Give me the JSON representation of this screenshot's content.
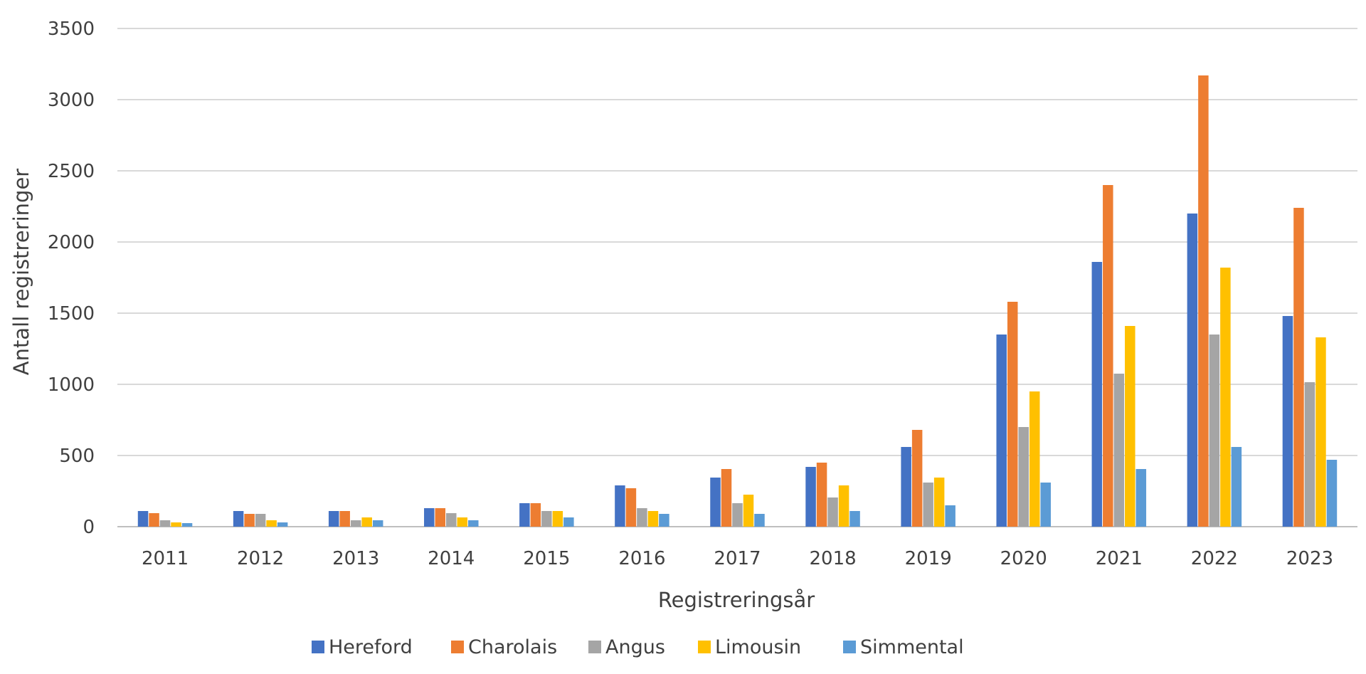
{
  "chart_data": {
    "type": "bar",
    "title": "",
    "xlabel": "Registreringsår",
    "ylabel": "Antall registreringer",
    "ylim": [
      0,
      3500
    ],
    "yticks": [
      "0",
      "500",
      "1000",
      "1500",
      "2000",
      "2500",
      "3000",
      "3500"
    ],
    "grid": true,
    "legend_position": "bottom",
    "categories": [
      "2011",
      "2012",
      "2013",
      "2014",
      "2015",
      "2016",
      "2017",
      "2018",
      "2019",
      "2020",
      "2021",
      "2022",
      "2023"
    ],
    "series": [
      {
        "name": "Hereford",
        "color": "#4472C4",
        "values": [
          110,
          110,
          110,
          130,
          165,
          290,
          345,
          420,
          560,
          1350,
          1860,
          2200,
          1480
        ]
      },
      {
        "name": "Charolais",
        "color": "#ED7D31",
        "values": [
          95,
          90,
          110,
          130,
          165,
          270,
          405,
          450,
          680,
          1580,
          2400,
          3170,
          2240
        ]
      },
      {
        "name": "Angus",
        "color": "#A5A5A5",
        "values": [
          45,
          90,
          45,
          95,
          110,
          130,
          165,
          205,
          310,
          700,
          1075,
          1350,
          1015
        ]
      },
      {
        "name": "Limousin",
        "color": "#FFC000",
        "values": [
          30,
          45,
          65,
          65,
          110,
          110,
          225,
          290,
          345,
          950,
          1410,
          1820,
          1330
        ]
      },
      {
        "name": "Simmental",
        "color": "#5B9BD5",
        "values": [
          25,
          30,
          45,
          45,
          65,
          90,
          90,
          110,
          150,
          310,
          405,
          560,
          470
        ]
      }
    ]
  }
}
